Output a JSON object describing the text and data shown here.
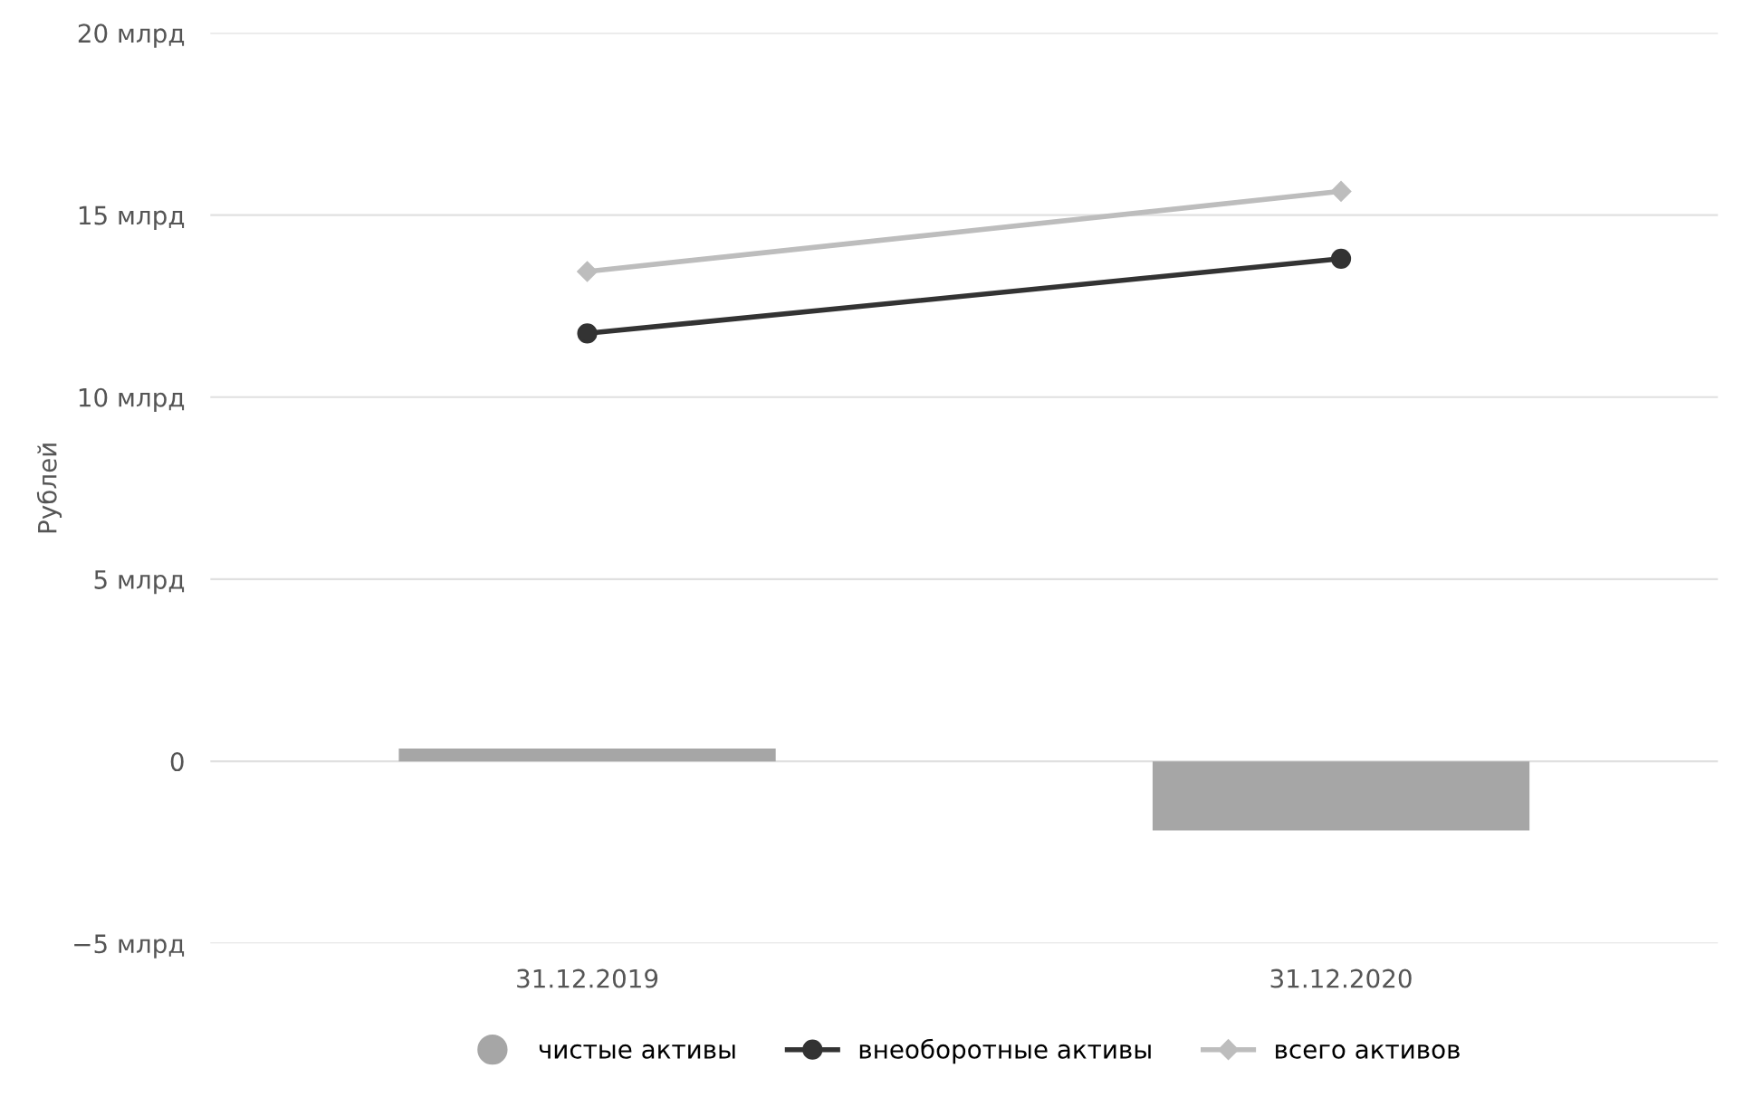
{
  "chart_data": {
    "type": "bar",
    "ylabel": "Рублей",
    "categories": [
      "31.12.2019",
      "31.12.2020"
    ],
    "series": [
      {
        "name": "чистые активы",
        "color": "#a6a6a6",
        "values": [
          0.35,
          -1.9
        ],
        "marker": "circle"
      },
      {
        "name": "внеоборотные активы",
        "type": "line",
        "color": "#333333",
        "values": [
          11.75,
          13.8
        ],
        "marker": "circle"
      },
      {
        "name": "всего активов",
        "type": "line",
        "color": "#bdbdbd",
        "values": [
          13.45,
          15.65
        ],
        "marker": "diamond"
      }
    ],
    "ylim": [
      -5,
      20
    ],
    "yticks": [
      {
        "value": -5,
        "label": "−5 млрд"
      },
      {
        "value": 0,
        "label": "0"
      },
      {
        "value": 5,
        "label": "5 млрд"
      },
      {
        "value": 10,
        "label": "10 млрд"
      },
      {
        "value": 15,
        "label": "15 млрд"
      },
      {
        "value": 20,
        "label": "20 млрд"
      }
    ],
    "grid": "y",
    "legend": "bottom"
  }
}
